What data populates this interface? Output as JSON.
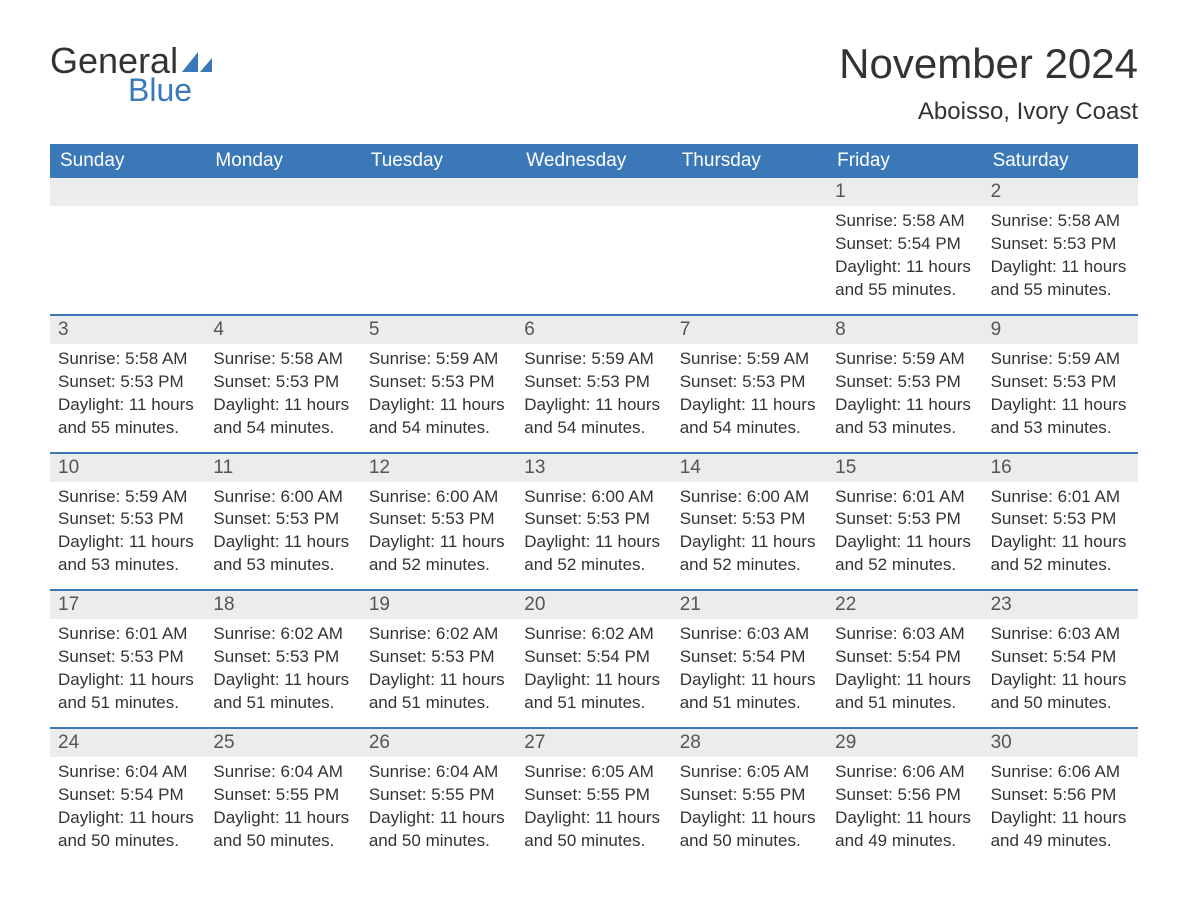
{
  "logo": {
    "text1": "General",
    "text2": "Blue"
  },
  "title": "November 2024",
  "location": "Aboisso, Ivory Coast",
  "colors": {
    "header_bg": "#3b78b8",
    "header_text": "#ffffff",
    "daybar_bg": "#ececec",
    "text": "#333333",
    "logo_blue": "#3b78b8"
  },
  "weekdays": [
    "Sunday",
    "Monday",
    "Tuesday",
    "Wednesday",
    "Thursday",
    "Friday",
    "Saturday"
  ],
  "weeks": [
    [
      null,
      null,
      null,
      null,
      null,
      {
        "n": "1",
        "sunrise": "5:58 AM",
        "sunset": "5:54 PM",
        "daylight": "11 hours and 55 minutes."
      },
      {
        "n": "2",
        "sunrise": "5:58 AM",
        "sunset": "5:53 PM",
        "daylight": "11 hours and 55 minutes."
      }
    ],
    [
      {
        "n": "3",
        "sunrise": "5:58 AM",
        "sunset": "5:53 PM",
        "daylight": "11 hours and 55 minutes."
      },
      {
        "n": "4",
        "sunrise": "5:58 AM",
        "sunset": "5:53 PM",
        "daylight": "11 hours and 54 minutes."
      },
      {
        "n": "5",
        "sunrise": "5:59 AM",
        "sunset": "5:53 PM",
        "daylight": "11 hours and 54 minutes."
      },
      {
        "n": "6",
        "sunrise": "5:59 AM",
        "sunset": "5:53 PM",
        "daylight": "11 hours and 54 minutes."
      },
      {
        "n": "7",
        "sunrise": "5:59 AM",
        "sunset": "5:53 PM",
        "daylight": "11 hours and 54 minutes."
      },
      {
        "n": "8",
        "sunrise": "5:59 AM",
        "sunset": "5:53 PM",
        "daylight": "11 hours and 53 minutes."
      },
      {
        "n": "9",
        "sunrise": "5:59 AM",
        "sunset": "5:53 PM",
        "daylight": "11 hours and 53 minutes."
      }
    ],
    [
      {
        "n": "10",
        "sunrise": "5:59 AM",
        "sunset": "5:53 PM",
        "daylight": "11 hours and 53 minutes."
      },
      {
        "n": "11",
        "sunrise": "6:00 AM",
        "sunset": "5:53 PM",
        "daylight": "11 hours and 53 minutes."
      },
      {
        "n": "12",
        "sunrise": "6:00 AM",
        "sunset": "5:53 PM",
        "daylight": "11 hours and 52 minutes."
      },
      {
        "n": "13",
        "sunrise": "6:00 AM",
        "sunset": "5:53 PM",
        "daylight": "11 hours and 52 minutes."
      },
      {
        "n": "14",
        "sunrise": "6:00 AM",
        "sunset": "5:53 PM",
        "daylight": "11 hours and 52 minutes."
      },
      {
        "n": "15",
        "sunrise": "6:01 AM",
        "sunset": "5:53 PM",
        "daylight": "11 hours and 52 minutes."
      },
      {
        "n": "16",
        "sunrise": "6:01 AM",
        "sunset": "5:53 PM",
        "daylight": "11 hours and 52 minutes."
      }
    ],
    [
      {
        "n": "17",
        "sunrise": "6:01 AM",
        "sunset": "5:53 PM",
        "daylight": "11 hours and 51 minutes."
      },
      {
        "n": "18",
        "sunrise": "6:02 AM",
        "sunset": "5:53 PM",
        "daylight": "11 hours and 51 minutes."
      },
      {
        "n": "19",
        "sunrise": "6:02 AM",
        "sunset": "5:53 PM",
        "daylight": "11 hours and 51 minutes."
      },
      {
        "n": "20",
        "sunrise": "6:02 AM",
        "sunset": "5:54 PM",
        "daylight": "11 hours and 51 minutes."
      },
      {
        "n": "21",
        "sunrise": "6:03 AM",
        "sunset": "5:54 PM",
        "daylight": "11 hours and 51 minutes."
      },
      {
        "n": "22",
        "sunrise": "6:03 AM",
        "sunset": "5:54 PM",
        "daylight": "11 hours and 51 minutes."
      },
      {
        "n": "23",
        "sunrise": "6:03 AM",
        "sunset": "5:54 PM",
        "daylight": "11 hours and 50 minutes."
      }
    ],
    [
      {
        "n": "24",
        "sunrise": "6:04 AM",
        "sunset": "5:54 PM",
        "daylight": "11 hours and 50 minutes."
      },
      {
        "n": "25",
        "sunrise": "6:04 AM",
        "sunset": "5:55 PM",
        "daylight": "11 hours and 50 minutes."
      },
      {
        "n": "26",
        "sunrise": "6:04 AM",
        "sunset": "5:55 PM",
        "daylight": "11 hours and 50 minutes."
      },
      {
        "n": "27",
        "sunrise": "6:05 AM",
        "sunset": "5:55 PM",
        "daylight": "11 hours and 50 minutes."
      },
      {
        "n": "28",
        "sunrise": "6:05 AM",
        "sunset": "5:55 PM",
        "daylight": "11 hours and 50 minutes."
      },
      {
        "n": "29",
        "sunrise": "6:06 AM",
        "sunset": "5:56 PM",
        "daylight": "11 hours and 49 minutes."
      },
      {
        "n": "30",
        "sunrise": "6:06 AM",
        "sunset": "5:56 PM",
        "daylight": "11 hours and 49 minutes."
      }
    ]
  ],
  "labels": {
    "sunrise": "Sunrise: ",
    "sunset": "Sunset: ",
    "daylight": "Daylight: "
  }
}
